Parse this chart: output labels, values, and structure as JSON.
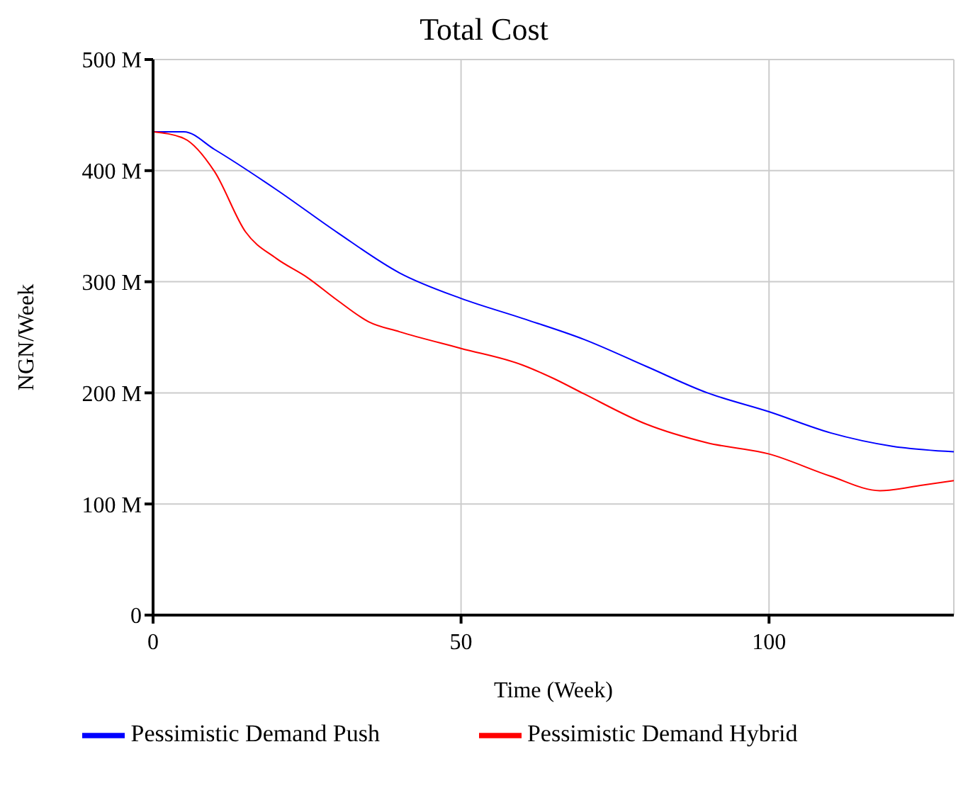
{
  "chart_data": {
    "type": "line",
    "title": "Total Cost",
    "xlabel": "Time (Week)",
    "ylabel": "NGN/Week",
    "xlim": [
      0,
      130
    ],
    "xticks": [
      0,
      50,
      100
    ],
    "ylim": [
      0,
      500000000
    ],
    "yticks": [
      {
        "value": 0,
        "label": "0"
      },
      {
        "value": 100000000,
        "label": "100 M"
      },
      {
        "value": 200000000,
        "label": "200 M"
      },
      {
        "value": 300000000,
        "label": "300 M"
      },
      {
        "value": 400000000,
        "label": "400 M"
      },
      {
        "value": 500000000,
        "label": "500 M"
      }
    ],
    "grid": true,
    "legend": "bottom",
    "marker": "none",
    "line_style": "solid",
    "series": [
      {
        "name": "Pessimistic Demand Push",
        "color": "#0000ff",
        "x": [
          0,
          5,
          10,
          20,
          30,
          40,
          50,
          60,
          70,
          80,
          90,
          100,
          110,
          120,
          130
        ],
        "values": [
          435000000,
          435000000,
          419000000,
          383000000,
          344000000,
          308000000,
          285000000,
          267000000,
          248000000,
          224000000,
          200000000,
          183000000,
          164000000,
          152000000,
          147000000
        ]
      },
      {
        "name": "Pessimistic Demand Hybrid",
        "color": "#ff0000",
        "x": [
          0,
          5,
          10,
          15,
          20,
          25,
          30,
          35,
          40,
          50,
          60,
          65,
          70,
          80,
          90,
          100,
          110,
          118,
          125,
          130
        ],
        "values": [
          435000000,
          429000000,
          399000000,
          345000000,
          321000000,
          304000000,
          283000000,
          264000000,
          255000000,
          240000000,
          225000000,
          213000000,
          199000000,
          172000000,
          155000000,
          145000000,
          125000000,
          112000000,
          117000000,
          121000000
        ]
      }
    ]
  }
}
